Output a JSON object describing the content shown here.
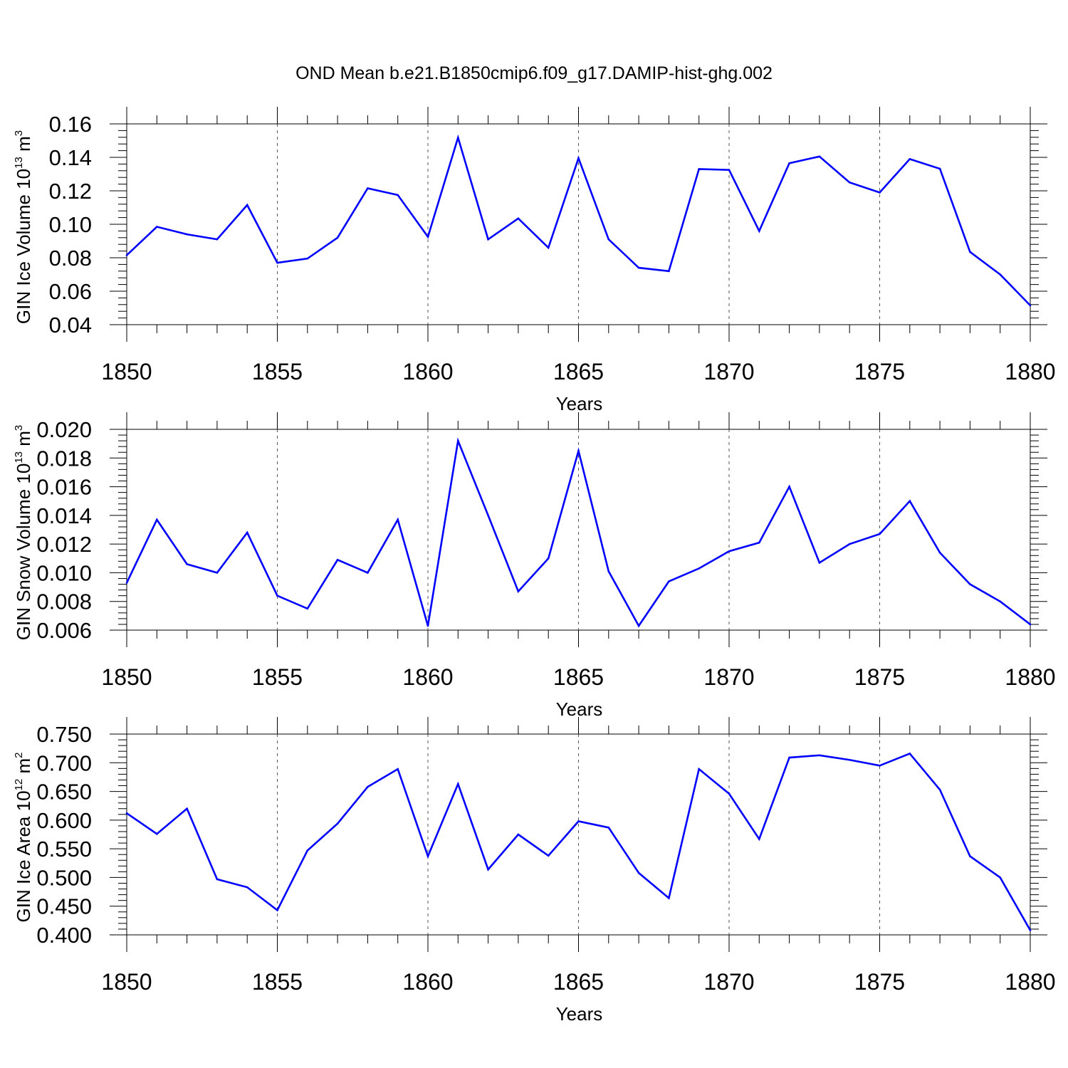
{
  "title": "OND Mean b.e21.B1850cmip6.f09_g17.DAMIP-hist-ghg.002",
  "line_color": "#0000ff",
  "chart_data": [
    {
      "type": "line",
      "xlabel": "Years",
      "ylabel_prefix": "GIN Ice Volume 10",
      "ylabel_exp": "13",
      "ylabel_unit": " m",
      "ylabel_unit_exp": "3",
      "xlim": [
        1850,
        1880
      ],
      "ylim": [
        0.04,
        0.16
      ],
      "xticks": [
        "1850",
        "1855",
        "1860",
        "1865",
        "1870",
        "1875",
        "1880"
      ],
      "yticks": [
        "0.04",
        "0.06",
        "0.08",
        "0.10",
        "0.12",
        "0.14",
        "0.16"
      ],
      "x": [
        1850,
        1851,
        1852,
        1853,
        1854,
        1855,
        1856,
        1857,
        1858,
        1859,
        1860,
        1861,
        1862,
        1863,
        1864,
        1865,
        1866,
        1867,
        1868,
        1869,
        1870,
        1871,
        1872,
        1873,
        1874,
        1875,
        1876,
        1877,
        1878,
        1879,
        1880
      ],
      "values": [
        0.0815,
        0.0985,
        0.094,
        0.091,
        0.1115,
        0.077,
        0.0795,
        0.092,
        0.1215,
        0.1175,
        0.0925,
        0.1518,
        0.091,
        0.1035,
        0.086,
        0.1395,
        0.091,
        0.074,
        0.072,
        0.133,
        0.1325,
        0.096,
        0.1365,
        0.1405,
        0.125,
        0.119,
        0.139,
        0.1332,
        0.0835,
        0.07,
        0.0515
      ]
    },
    {
      "type": "line",
      "xlabel": "Years",
      "ylabel_prefix": "GIN Snow Volume 10",
      "ylabel_exp": "13",
      "ylabel_unit": " m",
      "ylabel_unit_exp": "3",
      "xlim": [
        1850,
        1880
      ],
      "ylim": [
        0.006,
        0.02
      ],
      "xticks": [
        "1850",
        "1855",
        "1860",
        "1865",
        "1870",
        "1875",
        "1880"
      ],
      "yticks": [
        "0.006",
        "0.008",
        "0.010",
        "0.012",
        "0.014",
        "0.016",
        "0.018",
        "0.020"
      ],
      "x": [
        1850,
        1851,
        1852,
        1853,
        1854,
        1855,
        1856,
        1857,
        1858,
        1859,
        1860,
        1861,
        1862,
        1863,
        1864,
        1865,
        1866,
        1867,
        1868,
        1869,
        1870,
        1871,
        1872,
        1873,
        1874,
        1875,
        1876,
        1877,
        1878,
        1879,
        1880
      ],
      "values": [
        0.0093,
        0.0137,
        0.0106,
        0.01,
        0.0128,
        0.0084,
        0.0075,
        0.0109,
        0.01,
        0.0137,
        0.0063,
        0.0192,
        0.014,
        0.0087,
        0.011,
        0.0185,
        0.0101,
        0.0063,
        0.0094,
        0.0103,
        0.0115,
        0.0121,
        0.016,
        0.0107,
        0.012,
        0.0127,
        0.015,
        0.0114,
        0.0092,
        0.008,
        0.0064
      ]
    },
    {
      "type": "line",
      "xlabel": "Years",
      "ylabel_prefix": "GIN Ice Area 10",
      "ylabel_exp": "12",
      "ylabel_unit": " m",
      "ylabel_unit_exp": "2",
      "xlim": [
        1850,
        1880
      ],
      "ylim": [
        0.4,
        0.75
      ],
      "xticks": [
        "1850",
        "1855",
        "1860",
        "1865",
        "1870",
        "1875",
        "1880"
      ],
      "yticks": [
        "0.400",
        "0.450",
        "0.500",
        "0.550",
        "0.600",
        "0.650",
        "0.700",
        "0.750"
      ],
      "x": [
        1850,
        1851,
        1852,
        1853,
        1854,
        1855,
        1856,
        1857,
        1858,
        1859,
        1860,
        1861,
        1862,
        1863,
        1864,
        1865,
        1866,
        1867,
        1868,
        1869,
        1870,
        1871,
        1872,
        1873,
        1874,
        1875,
        1876,
        1877,
        1878,
        1879,
        1880
      ],
      "values": [
        0.612,
        0.576,
        0.62,
        0.497,
        0.483,
        0.443,
        0.547,
        0.594,
        0.658,
        0.689,
        0.537,
        0.663,
        0.514,
        0.575,
        0.538,
        0.598,
        0.587,
        0.508,
        0.464,
        0.689,
        0.646,
        0.567,
        0.709,
        0.713,
        0.705,
        0.695,
        0.716,
        0.653,
        0.537,
        0.5,
        0.408
      ]
    }
  ]
}
